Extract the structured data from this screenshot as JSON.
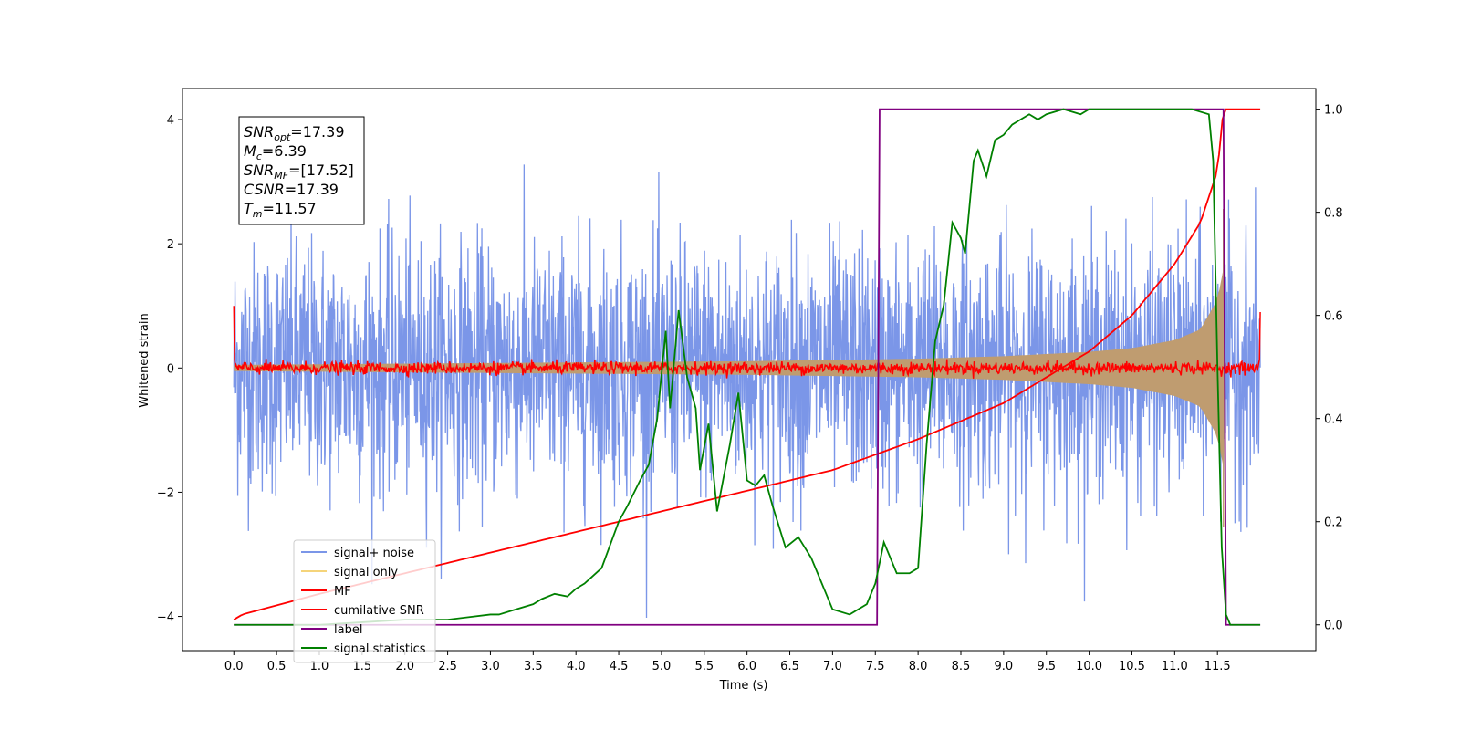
{
  "chart_data": {
    "type": "line",
    "xlabel": "Time (s)",
    "ylabel": "Whitened strain",
    "xlim": [
      -0.6,
      12.65
    ],
    "ylim": [
      -4.55,
      4.5
    ],
    "y2lim": [
      -0.05,
      1.04
    ],
    "x_ticks": [
      0.0,
      0.5,
      1.0,
      1.5,
      2.0,
      2.5,
      3.0,
      3.5,
      4.0,
      4.5,
      5.0,
      5.5,
      6.0,
      6.5,
      7.0,
      7.5,
      8.0,
      8.5,
      9.0,
      9.5,
      10.0,
      10.5,
      11.0,
      11.5
    ],
    "x_tick_labels": [
      "0.0",
      "0.5",
      "1.0",
      "1.5",
      "2.0",
      "2.5",
      "3.0",
      "3.5",
      "4.0",
      "4.5",
      "5.0",
      "5.5",
      "6.0",
      "6.5",
      "7.0",
      "7.5",
      "8.0",
      "8.5",
      "9.0",
      "9.5",
      "10.0",
      "10.5",
      "11.0",
      "11.5"
    ],
    "y_ticks": [
      -4,
      -2,
      0,
      2,
      4
    ],
    "y_tick_labels": [
      "−4",
      "−2",
      "0",
      "2",
      "4"
    ],
    "y2_ticks": [
      0.0,
      0.2,
      0.4,
      0.6,
      0.8,
      1.0
    ],
    "y2_tick_labels": [
      "0.0",
      "0.2",
      "0.4",
      "0.6",
      "0.8",
      "1.0"
    ],
    "grid": false,
    "legend_position": "lower-left",
    "annotation": [
      {
        "base": "SNR",
        "sub": "opt",
        "value": "=17.39"
      },
      {
        "base": "M",
        "sub": "c",
        "value": "=6.39"
      },
      {
        "base": "SNR",
        "sub": "MF",
        "value": "=[17.52]"
      },
      {
        "base": "CSNR",
        "sub": "",
        "value": "=17.39"
      },
      {
        "base": "T",
        "sub": "m",
        "value": "=11.57"
      }
    ],
    "series": [
      {
        "name": "signal+ noise",
        "axis": "left",
        "color": "#7b96e8",
        "kind": "noise",
        "x_range": [
          0.0,
          12.0
        ],
        "approx_std": 1.0
      },
      {
        "name": "signal only",
        "axis": "left",
        "color": "#f5d47a",
        "kind": "chirp-envelope",
        "x_range": [
          0.0,
          11.57
        ],
        "envelope_x": [
          0.0,
          2.0,
          4.0,
          6.0,
          8.0,
          9.0,
          10.0,
          10.5,
          11.0,
          11.3,
          11.5,
          11.57
        ],
        "envelope_y": [
          0.05,
          0.07,
          0.09,
          0.11,
          0.15,
          0.19,
          0.26,
          0.32,
          0.45,
          0.62,
          1.1,
          1.6
        ]
      },
      {
        "name": "MF",
        "axis": "left",
        "color": "#ff0000",
        "kind": "mf-noise",
        "x_range": [
          0.0,
          12.0
        ],
        "approx_std": 0.05,
        "edge_start": 1.0,
        "edge_end": 0.9
      },
      {
        "name": "cumilative SNR",
        "axis": "right",
        "color": "#ff0000",
        "kind": "line",
        "x": [
          0.0,
          0.1,
          1.0,
          2.0,
          3.0,
          4.0,
          5.0,
          6.0,
          7.0,
          7.5,
          8.0,
          9.0,
          9.5,
          10.0,
          10.5,
          11.0,
          11.3,
          11.5,
          11.57,
          12.0
        ],
        "y": [
          0.01,
          0.02,
          0.06,
          0.1,
          0.14,
          0.18,
          0.22,
          0.26,
          0.3,
          0.33,
          0.36,
          0.43,
          0.48,
          0.53,
          0.6,
          0.7,
          0.78,
          0.88,
          1.0,
          1.0
        ]
      },
      {
        "name": "label",
        "axis": "right",
        "color": "#800080",
        "kind": "line",
        "x": [
          0.0,
          7.52,
          7.55,
          11.57,
          11.6,
          12.0
        ],
        "y": [
          0.0,
          0.0,
          1.0,
          1.0,
          0.0,
          0.0
        ]
      },
      {
        "name": "signal statistics",
        "axis": "right",
        "color": "#008000",
        "kind": "line",
        "x": [
          0.0,
          0.5,
          1.0,
          1.5,
          2.0,
          2.5,
          3.0,
          3.1,
          3.3,
          3.5,
          3.6,
          3.75,
          3.9,
          4.0,
          4.1,
          4.3,
          4.5,
          4.6,
          4.75,
          4.85,
          4.95,
          5.05,
          5.1,
          5.2,
          5.3,
          5.4,
          5.45,
          5.55,
          5.65,
          5.8,
          5.9,
          6.0,
          6.1,
          6.2,
          6.3,
          6.45,
          6.6,
          6.75,
          6.9,
          7.0,
          7.2,
          7.4,
          7.5,
          7.6,
          7.75,
          7.9,
          8.0,
          8.1,
          8.2,
          8.3,
          8.4,
          8.5,
          8.55,
          8.65,
          8.7,
          8.8,
          8.9,
          9.0,
          9.1,
          9.2,
          9.3,
          9.4,
          9.5,
          9.7,
          9.9,
          10.0,
          10.1,
          10.2,
          10.4,
          10.6,
          10.8,
          11.0,
          11.2,
          11.4,
          11.45,
          11.5,
          11.55,
          11.6,
          11.65,
          11.7,
          12.0
        ],
        "y": [
          0.0,
          0.0,
          0.0,
          0.005,
          0.01,
          0.01,
          0.02,
          0.02,
          0.03,
          0.04,
          0.05,
          0.06,
          0.055,
          0.07,
          0.08,
          0.11,
          0.2,
          0.23,
          0.28,
          0.31,
          0.4,
          0.57,
          0.42,
          0.61,
          0.48,
          0.42,
          0.3,
          0.39,
          0.22,
          0.35,
          0.45,
          0.28,
          0.27,
          0.29,
          0.23,
          0.15,
          0.17,
          0.13,
          0.07,
          0.03,
          0.02,
          0.04,
          0.08,
          0.16,
          0.1,
          0.1,
          0.11,
          0.35,
          0.55,
          0.62,
          0.78,
          0.75,
          0.72,
          0.9,
          0.92,
          0.87,
          0.94,
          0.95,
          0.97,
          0.98,
          0.99,
          0.98,
          0.99,
          1.0,
          0.99,
          1.0,
          1.0,
          1.0,
          1.0,
          1.0,
          1.0,
          1.0,
          1.0,
          0.99,
          0.9,
          0.5,
          0.15,
          0.02,
          0.0,
          0.0,
          0.0
        ]
      }
    ]
  }
}
